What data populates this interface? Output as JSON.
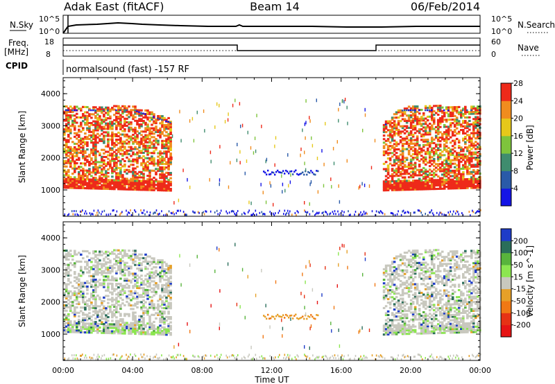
{
  "header": {
    "title_left": "Adak East (fitACF)",
    "title_center": "Beam 14",
    "title_right": "06/Feb/2014"
  },
  "aux_panels": {
    "nsky_label": "N.Sky",
    "nsky_ticks": [
      "10^5",
      "10^0"
    ],
    "nsearch_label": "N.Search",
    "nsearch_ticks": [
      "10^5",
      "10^0"
    ],
    "freq_label": "Freq.",
    "freq_unit": "[MHz]",
    "freq_ticks": [
      "18",
      "8"
    ],
    "nave_label": "Nave",
    "nave_ticks": [
      "60",
      "0"
    ],
    "cpid_label": "CPID",
    "cpid_text": "normalsound (fast) -157 RF"
  },
  "chart_data": [
    {
      "type": "heatmap",
      "name": "power",
      "ylabel": "Slant Range [km]",
      "ylim": [
        180,
        4500
      ],
      "yticks": [
        "1000",
        "2000",
        "3000",
        "4000"
      ],
      "xlim": [
        "00:00",
        "24:00"
      ],
      "colorbar": {
        "label": "Power [dB]",
        "tick_labels": [
          "4",
          "8",
          "12",
          "16",
          "20",
          "24",
          "28"
        ],
        "range": [
          0,
          30
        ],
        "colors": [
          "#1414e6",
          "#2a5aa8",
          "#3f8c6e",
          "#7ec43c",
          "#e6c81a",
          "#f08c1e",
          "#ee2a1a"
        ]
      },
      "features": [
        {
          "start_ut": "00:00",
          "end_ut": "06:00",
          "range_km": [
            800,
            3600
          ],
          "power_db": 26,
          "description": "dense echoes"
        },
        {
          "start_ut": "11:30",
          "end_ut": "14:40",
          "range_km": [
            1450,
            1600
          ],
          "power_db": 3
        },
        {
          "start_ut": "18:00",
          "end_ut": "24:00",
          "range_km": [
            800,
            3600
          ],
          "power_db": 26
        }
      ]
    },
    {
      "type": "heatmap",
      "name": "velocity",
      "ylabel": "Slant Range [km]",
      "ylim": [
        180,
        4500
      ],
      "yticks": [
        "1000",
        "2000",
        "3000",
        "4000"
      ],
      "xlabel": "Time UT",
      "xticks": [
        "00:00",
        "04:00",
        "08:00",
        "12:00",
        "16:00",
        "20:00",
        "00:00"
      ],
      "colorbar": {
        "label": "Velocity [m s^-1]",
        "tick_labels": [
          "200",
          "100",
          "50",
          "15",
          "-15",
          "-50",
          "-100",
          "-200"
        ],
        "range": [
          -250,
          250
        ],
        "colors": [
          "#1e3cc8",
          "#2a6e5a",
          "#58b43c",
          "#8ce650",
          "#c8c8be",
          "#e6a028",
          "#f07814",
          "#e63214",
          "#e61414"
        ]
      }
    }
  ]
}
